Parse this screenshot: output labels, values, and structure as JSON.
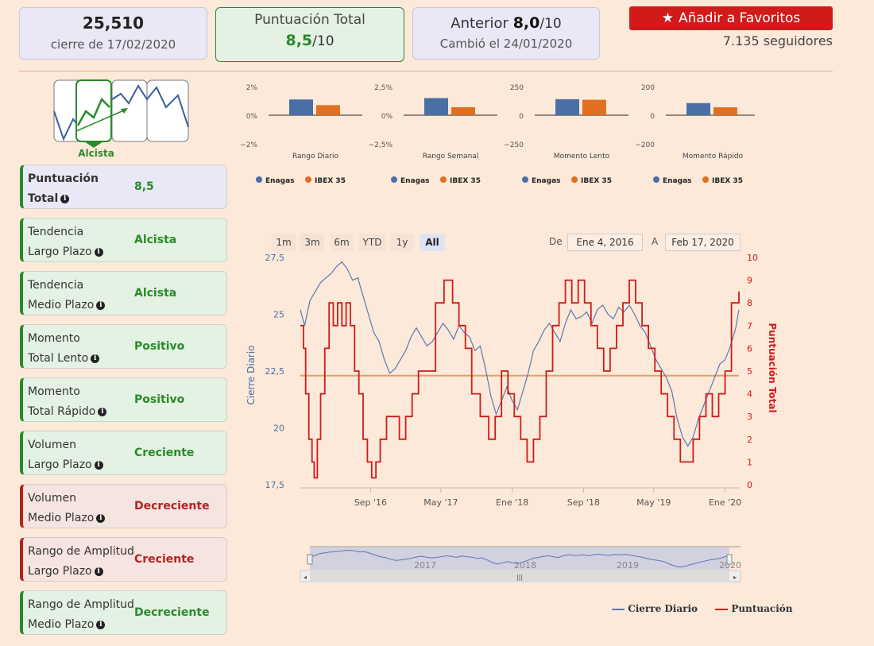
{
  "summary": {
    "price": "25,510",
    "close_date": "cierre de 17/02/2020",
    "score_title": "Puntuación Total",
    "score_value": "8,5",
    "score_suffix": "/10",
    "prev_label": "Anterior",
    "prev_value": "8,0",
    "prev_suffix": "/10",
    "prev_date": "Cambió el 24/01/2020"
  },
  "favorites": {
    "button_label": "Añadir a Favoritos",
    "followers": "7.135 seguidores"
  },
  "trend_widget": {
    "label": "Alcista"
  },
  "cards": [
    {
      "l1": "Puntuación",
      "l2": "Total",
      "value": "8,5",
      "status": "blue"
    },
    {
      "l1": "Tendencia",
      "l2": "Largo Plazo",
      "value": "Alcista",
      "status": "green"
    },
    {
      "l1": "Tendencia",
      "l2": "Medio Plazo",
      "value": "Alcista",
      "status": "green"
    },
    {
      "l1": "Momento",
      "l2": "Total Lento",
      "value": "Positivo",
      "status": "green"
    },
    {
      "l1": "Momento",
      "l2": "Total Rápido",
      "value": "Positivo",
      "status": "green"
    },
    {
      "l1": "Volumen",
      "l2": "Largo Plazo",
      "value": "Creciente",
      "status": "green"
    },
    {
      "l1": "Volumen",
      "l2": "Medio Plazo",
      "value": "Decreciente",
      "status": "red"
    },
    {
      "l1": "Rango de Amplitud",
      "l2": "Largo Plazo",
      "value": "Creciente",
      "status": "red"
    },
    {
      "l1": "Rango de Amplitud",
      "l2": "Medio Plazo",
      "value": "Decreciente",
      "status": "green"
    }
  ],
  "range_selector": {
    "buttons": [
      "1m",
      "3m",
      "6m",
      "YTD",
      "1y",
      "All"
    ],
    "active": "All",
    "from_label": "De",
    "from_value": "Ene 4, 2016",
    "to_label": "A",
    "to_value": "Feb 17, 2020"
  },
  "navigator": {
    "year_labels": [
      "2017",
      "2018",
      "2019",
      "2020"
    ]
  },
  "colors": {
    "enagas": "#4a6fa5",
    "ibex": "#e07020",
    "score": "#d11a1a",
    "close": "#5b78b0",
    "green": "#2a8a2a",
    "red": "#b22222"
  },
  "chart_data": [
    {
      "type": "bar",
      "title": "Rango Diario",
      "categories": [
        "Enagas",
        "IBEX 35"
      ],
      "values": [
        1.1,
        0.7
      ],
      "ylim": [
        -2,
        2
      ],
      "ticks": [
        "2%",
        "0%",
        "−2%"
      ],
      "ticks_values": [
        2,
        0,
        -2
      ]
    },
    {
      "type": "bar",
      "title": "Rango Semanal",
      "categories": [
        "Enagas",
        "IBEX 35"
      ],
      "values": [
        1.5,
        0.7
      ],
      "ylim": [
        -2.5,
        2.5
      ],
      "ticks": [
        "2,5%",
        "0%",
        "−2,5%"
      ],
      "ticks_values": [
        2.5,
        0,
        -2.5
      ]
    },
    {
      "type": "bar",
      "title": "Momento Lento",
      "categories": [
        "Enagas",
        "IBEX 35"
      ],
      "values": [
        140,
        135
      ],
      "ylim": [
        -250,
        250
      ],
      "ticks": [
        "250",
        "0",
        "−250"
      ],
      "ticks_values": [
        250,
        0,
        -250
      ]
    },
    {
      "type": "bar",
      "title": "Momento Rápido",
      "categories": [
        "Enagas",
        "IBEX 35"
      ],
      "values": [
        85,
        55
      ],
      "ylim": [
        -200,
        200
      ],
      "ticks": [
        "200",
        "0",
        "−200"
      ],
      "ticks_values": [
        200,
        0,
        -200
      ]
    },
    {
      "type": "line",
      "xlabels": [
        "Sep '16",
        "May '17",
        "Ene '18",
        "Sep '18",
        "May '19",
        "Ene '20"
      ],
      "xlabel_values": [
        2016.67,
        2017.33,
        2018.0,
        2018.67,
        2019.33,
        2020.0
      ],
      "xlim": [
        2016.01,
        2020.13
      ],
      "y_left": {
        "label": "Cierre Diario",
        "ticks": [
          "27,5",
          "25",
          "22,5",
          "20",
          "17,5"
        ],
        "ticks_values": [
          27.5,
          25,
          22.5,
          20,
          17.5
        ],
        "lim": [
          17.5,
          27.5
        ]
      },
      "y_right": {
        "label": "Puntuación Total",
        "ticks": [
          "10",
          "9",
          "8",
          "7",
          "6",
          "5",
          "4",
          "3",
          "2",
          "1",
          "0"
        ],
        "ticks_values": [
          10,
          9,
          8,
          7,
          6,
          5,
          4,
          3,
          2,
          1,
          0
        ],
        "lim": [
          0,
          10
        ]
      },
      "reference_score": 4.8,
      "series": [
        {
          "name": "Cierre Diario",
          "axis": "left",
          "x": [
            2016.01,
            2016.05,
            2016.1,
            2016.15,
            2016.2,
            2016.25,
            2016.3,
            2016.35,
            2016.4,
            2016.45,
            2016.5,
            2016.55,
            2016.6,
            2016.65,
            2016.7,
            2016.75,
            2016.8,
            2016.85,
            2016.9,
            2016.95,
            2017.0,
            2017.05,
            2017.1,
            2017.15,
            2017.2,
            2017.25,
            2017.3,
            2017.35,
            2017.4,
            2017.45,
            2017.5,
            2017.55,
            2017.6,
            2017.65,
            2017.7,
            2017.75,
            2017.8,
            2017.85,
            2017.9,
            2017.95,
            2018.0,
            2018.05,
            2018.1,
            2018.15,
            2018.2,
            2018.25,
            2018.3,
            2018.35,
            2018.4,
            2018.45,
            2018.5,
            2018.55,
            2018.6,
            2018.65,
            2018.7,
            2018.75,
            2018.8,
            2018.85,
            2018.9,
            2018.95,
            2019.0,
            2019.05,
            2019.1,
            2019.15,
            2019.2,
            2019.25,
            2019.3,
            2019.35,
            2019.4,
            2019.45,
            2019.5,
            2019.55,
            2019.6,
            2019.65,
            2019.7,
            2019.75,
            2019.8,
            2019.85,
            2019.9,
            2019.95,
            2020.0,
            2020.05,
            2020.1,
            2020.13
          ],
          "y": [
            25.2,
            24.5,
            25.6,
            26.0,
            26.4,
            26.6,
            26.8,
            27.1,
            27.3,
            27.0,
            26.5,
            26.6,
            25.8,
            25.0,
            24.2,
            23.8,
            23.0,
            22.4,
            22.6,
            23.0,
            23.4,
            24.0,
            24.4,
            24.0,
            23.6,
            23.8,
            24.2,
            24.6,
            24.3,
            23.9,
            24.5,
            24.2,
            24.0,
            23.4,
            23.6,
            22.6,
            21.4,
            20.6,
            21.2,
            21.8,
            21.2,
            20.8,
            21.6,
            22.4,
            23.4,
            23.8,
            24.3,
            24.6,
            24.2,
            23.8,
            24.6,
            25.2,
            24.8,
            24.9,
            25.1,
            24.6,
            25.2,
            25.4,
            25.0,
            24.8,
            25.3,
            25.1,
            25.4,
            25.0,
            24.5,
            24.2,
            23.6,
            23.0,
            22.6,
            22.2,
            21.6,
            20.4,
            19.6,
            19.2,
            19.6,
            20.4,
            21.0,
            21.6,
            22.2,
            22.8,
            23.0,
            23.6,
            24.4,
            25.2
          ]
        },
        {
          "name": "Puntuación",
          "axis": "right",
          "x": [
            2016.01,
            2016.04,
            2016.06,
            2016.09,
            2016.12,
            2016.14,
            2016.17,
            2016.2,
            2016.24,
            2016.28,
            2016.32,
            2016.36,
            2016.4,
            2016.44,
            2016.48,
            2016.52,
            2016.56,
            2016.6,
            2016.64,
            2016.68,
            2016.72,
            2016.76,
            2016.82,
            2016.88,
            2016.94,
            2017.0,
            2017.06,
            2017.12,
            2017.2,
            2017.28,
            2017.36,
            2017.44,
            2017.5,
            2017.56,
            2017.62,
            2017.7,
            2017.78,
            2017.84,
            2017.9,
            2017.96,
            2018.02,
            2018.08,
            2018.14,
            2018.2,
            2018.26,
            2018.32,
            2018.38,
            2018.44,
            2018.5,
            2018.56,
            2018.62,
            2018.68,
            2018.74,
            2018.8,
            2018.86,
            2018.92,
            2018.98,
            2019.04,
            2019.1,
            2019.16,
            2019.22,
            2019.28,
            2019.34,
            2019.4,
            2019.46,
            2019.52,
            2019.58,
            2019.64,
            2019.7,
            2019.76,
            2019.82,
            2019.88,
            2019.94,
            2020.0,
            2020.06,
            2020.13
          ],
          "y": [
            7,
            6,
            4,
            2,
            1,
            0.3,
            2,
            4,
            6,
            8,
            7,
            8,
            7,
            8,
            7,
            5,
            4,
            2,
            1,
            0.3,
            1,
            2,
            3,
            3,
            2,
            3,
            4,
            5,
            5,
            8,
            9,
            8,
            7,
            6,
            4,
            3,
            2,
            3,
            5,
            4,
            3,
            2,
            1,
            2,
            3,
            5,
            7,
            8,
            9,
            8,
            9,
            8,
            7,
            6,
            5,
            6,
            7,
            8,
            9,
            8,
            7,
            6,
            5,
            4,
            3,
            2,
            1,
            1,
            2,
            3,
            4,
            3,
            4,
            5,
            8,
            8.5
          ]
        }
      ]
    }
  ],
  "legends": {
    "bar_legend": [
      "Enagas",
      "IBEX 35"
    ],
    "main_legend": [
      "Cierre Diario",
      "Puntuación"
    ]
  }
}
